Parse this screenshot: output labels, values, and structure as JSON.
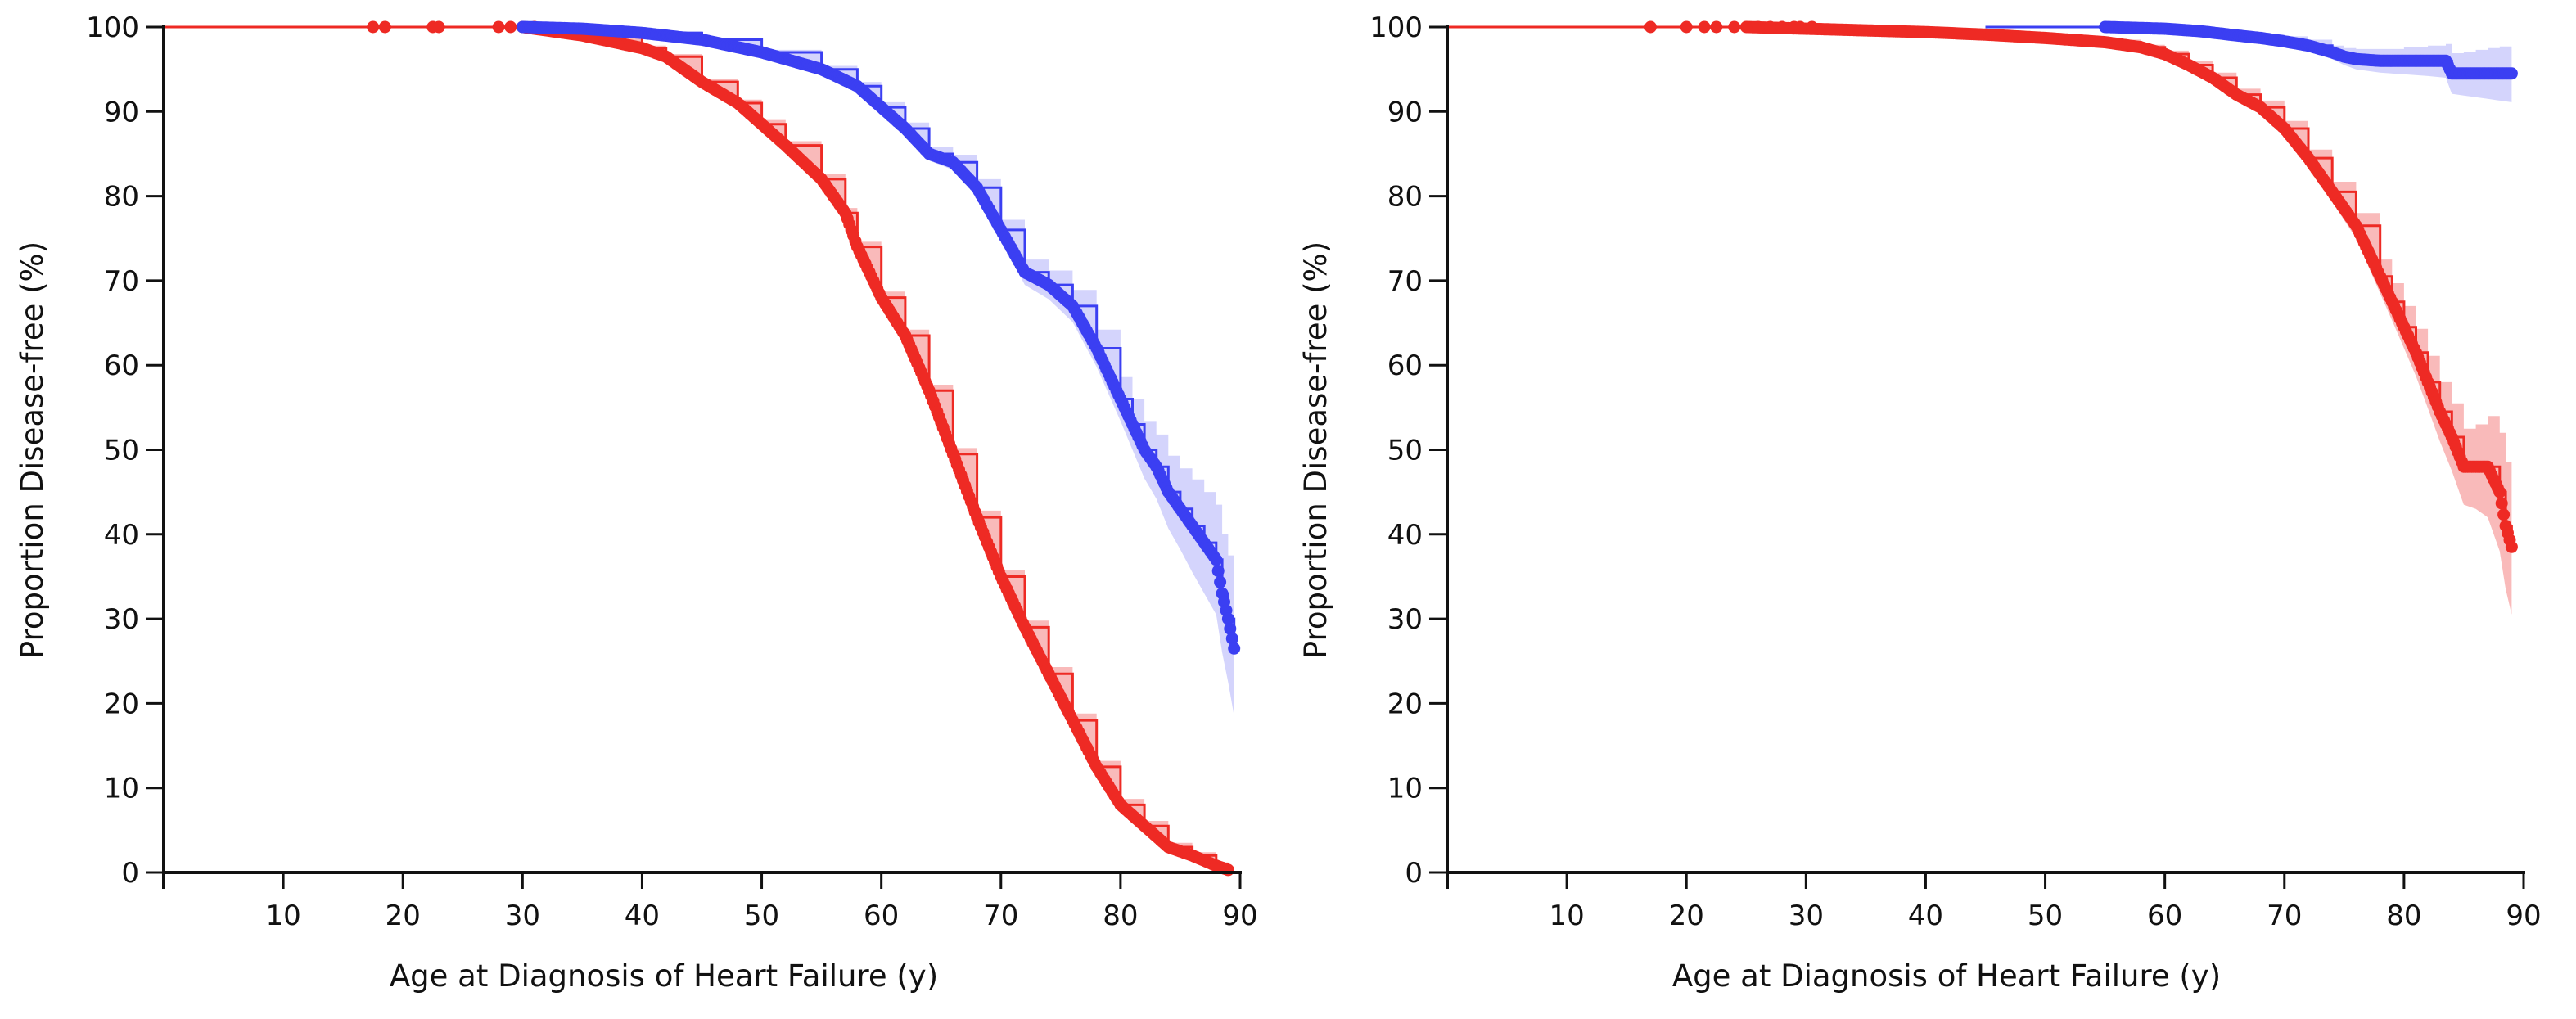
{
  "colors": {
    "red_line": "#ee2a24",
    "red_band": "#f7a3a3",
    "blue_line": "#3b3ff2",
    "blue_band": "#c6c5fb",
    "axis": "#111111"
  },
  "chart_data": [
    {
      "type": "line",
      "subtype": "kaplan-meier",
      "title": "",
      "xlabel": "Age at Diagnosis of Heart Failure (y)",
      "ylabel": "Proportion Disease-free (%)",
      "xlim": [
        0,
        90
      ],
      "ylim": [
        0,
        100
      ],
      "xticks": [
        "10",
        "20",
        "30",
        "40",
        "50",
        "60",
        "70",
        "80",
        "90"
      ],
      "yticks": [
        "0",
        "10",
        "20",
        "30",
        "40",
        "50",
        "60",
        "70",
        "80",
        "90",
        "100"
      ],
      "series": [
        {
          "name": "red",
          "color": "red",
          "x": [
            0,
            30,
            35,
            40,
            42,
            45,
            48,
            50,
            52,
            55,
            57,
            58,
            60,
            62,
            64,
            66,
            68,
            70,
            72,
            74,
            76,
            78,
            80,
            82,
            84,
            86,
            88,
            89
          ],
          "y": [
            100,
            100,
            99,
            97.5,
            96.5,
            93.5,
            91,
            88.5,
            86,
            82,
            78,
            74,
            68,
            63.5,
            57,
            49.5,
            42,
            35,
            29,
            23.5,
            18,
            12.5,
            8,
            5.5,
            3,
            2,
            0.8,
            0.3
          ],
          "band_halfwidth": [
            0,
            0,
            0.2,
            0.3,
            0.3,
            0.4,
            0.4,
            0.5,
            0.5,
            0.6,
            0.6,
            0.6,
            0.7,
            0.7,
            0.7,
            0.7,
            0.8,
            0.8,
            0.8,
            0.8,
            0.8,
            0.7,
            0.7,
            0.6,
            0.5,
            0.4,
            0.4,
            0.4
          ],
          "censor_x": [
            17.5,
            18.5,
            22.5,
            23,
            28,
            29,
            31
          ]
        },
        {
          "name": "blue",
          "color": "blue",
          "x": [
            30,
            35,
            40,
            45,
            50,
            55,
            58,
            60,
            62,
            64,
            66,
            68,
            70,
            72,
            74,
            76,
            78,
            80,
            81,
            82,
            83,
            84,
            85,
            86,
            87,
            88,
            88.5,
            89,
            89.5
          ],
          "y": [
            100,
            99.8,
            99.3,
            98.5,
            97,
            95,
            93,
            90.5,
            88,
            85,
            84,
            81,
            76,
            71,
            69.5,
            67,
            62,
            56,
            53,
            50,
            48,
            45,
            43,
            41,
            39,
            37,
            33,
            30,
            26.5
          ],
          "band_halfwidth": [
            0,
            0.1,
            0.2,
            0.2,
            0.3,
            0.4,
            0.5,
            0.6,
            0.7,
            0.8,
            0.9,
            1.0,
            1.2,
            1.5,
            1.7,
            1.9,
            2.2,
            2.6,
            3.0,
            3.4,
            3.8,
            4.3,
            4.8,
            5.5,
            6.0,
            6.5,
            7.0,
            7.5,
            8.0
          ],
          "censor_x": []
        }
      ]
    },
    {
      "type": "line",
      "subtype": "kaplan-meier",
      "title": "",
      "xlabel": "Age at Diagnosis of Heart Failure (y)",
      "ylabel": "Proportion Disease-free (%)",
      "xlim": [
        0,
        90
      ],
      "ylim": [
        0,
        100
      ],
      "xticks": [
        "10",
        "20",
        "30",
        "40",
        "50",
        "60",
        "70",
        "80",
        "90"
      ],
      "yticks": [
        "0",
        "10",
        "20",
        "30",
        "40",
        "50",
        "60",
        "70",
        "80",
        "90",
        "100"
      ],
      "series": [
        {
          "name": "red",
          "color": "red",
          "x": [
            0,
            25,
            30,
            35,
            40,
            45,
            50,
            55,
            58,
            60,
            62,
            64,
            66,
            68,
            70,
            72,
            74,
            76,
            78,
            79,
            80,
            81,
            82,
            83,
            84,
            85,
            86,
            87,
            88,
            88.5,
            89
          ],
          "y": [
            100,
            100,
            99.8,
            99.6,
            99.4,
            99.1,
            98.7,
            98.2,
            97.6,
            96.8,
            95.5,
            94,
            92,
            90.5,
            88,
            84.5,
            80.5,
            76.5,
            70.5,
            67.5,
            64.5,
            61.5,
            58,
            54.5,
            51.5,
            48,
            48,
            48,
            45,
            41,
            38.5
          ],
          "band_halfwidth": [
            0,
            0,
            0.1,
            0.1,
            0.1,
            0.2,
            0.2,
            0.3,
            0.3,
            0.4,
            0.5,
            0.6,
            0.7,
            0.8,
            0.9,
            1.0,
            1.2,
            1.5,
            2.0,
            2.2,
            2.5,
            2.8,
            3.1,
            3.5,
            4.0,
            4.5,
            5.0,
            6.0,
            7.0,
            7.5,
            8.0
          ],
          "censor_x": [
            17,
            20,
            21.5,
            22.5,
            24,
            26,
            27,
            28,
            29,
            29.5,
            30.5
          ]
        },
        {
          "name": "blue",
          "color": "blue",
          "x": [
            45,
            50,
            55,
            60,
            63,
            66,
            68,
            70,
            72,
            74,
            75,
            76,
            78,
            80,
            82,
            83.5,
            84,
            85,
            86,
            87,
            88,
            89
          ],
          "y": [
            100,
            100,
            100,
            99.8,
            99.5,
            99,
            98.7,
            98.3,
            97.8,
            97,
            96.5,
            96.2,
            96,
            96,
            96,
            96,
            94.5,
            94.5,
            94.5,
            94.5,
            94.5,
            94.5
          ],
          "band_halfwidth": [
            0,
            0,
            0,
            0.2,
            0.3,
            0.4,
            0.5,
            0.6,
            0.7,
            0.8,
            1.0,
            1.2,
            1.4,
            1.6,
            1.8,
            2.0,
            2.4,
            2.6,
            2.8,
            3.0,
            3.2,
            3.4
          ],
          "censor_x": []
        }
      ]
    }
  ]
}
